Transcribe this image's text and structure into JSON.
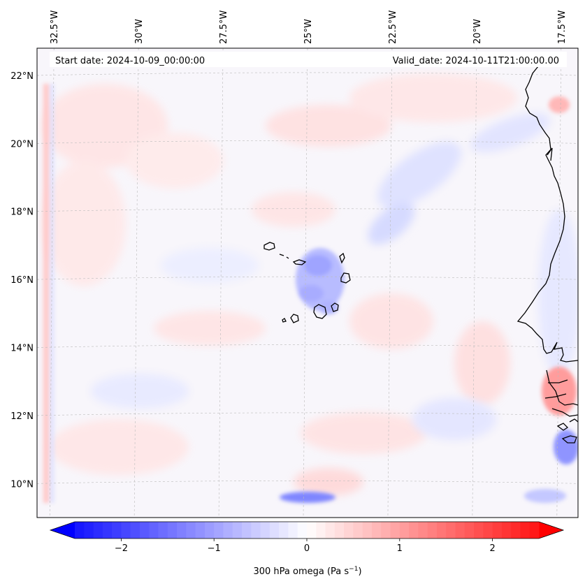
{
  "header": {
    "start_date": "Start date: 2024-10-09_00:00:00",
    "valid_date": "Valid_date: 2024-10-11T21:00:00.00"
  },
  "map": {
    "variable": "300 hPa omega",
    "lon_range": [
      -33.0,
      -17.0
    ],
    "lat_range": [
      9.0,
      22.8
    ],
    "lon_ticks": [
      {
        "value": -32.5,
        "label": "32.5°W"
      },
      {
        "value": -30.0,
        "label": "30°W"
      },
      {
        "value": -27.5,
        "label": "27.5°W"
      },
      {
        "value": -25.0,
        "label": "25°W"
      },
      {
        "value": -22.5,
        "label": "22.5°W"
      },
      {
        "value": -20.0,
        "label": "20°W"
      },
      {
        "value": -17.5,
        "label": "17.5°W"
      }
    ],
    "lat_ticks": [
      {
        "value": 22,
        "label": "22°N"
      },
      {
        "value": 20,
        "label": "20°N"
      },
      {
        "value": 18,
        "label": "18°N"
      },
      {
        "value": 16,
        "label": "16°N"
      },
      {
        "value": 14,
        "label": "14°N"
      },
      {
        "value": 12,
        "label": "12°N"
      },
      {
        "value": 10,
        "label": "10°N"
      }
    ],
    "features": [
      {
        "name": "Cape Verde Islands",
        "lon": -24.0,
        "lat": 16.0
      },
      {
        "name": "West African coastline",
        "lon": -17.0,
        "lat": 16.0
      }
    ]
  },
  "colorbar": {
    "label": "300 hPa omega (Pa s",
    "label_unit_sup": "−1",
    "label_close": ")",
    "vmin": -2.7,
    "vmax": 2.7,
    "ticks": [
      {
        "value": -2,
        "label": "−2"
      },
      {
        "value": -1,
        "label": "−1"
      },
      {
        "value": 0,
        "label": "0"
      },
      {
        "value": 1,
        "label": "1"
      },
      {
        "value": 2,
        "label": "2"
      }
    ],
    "colors": {
      "low": "#0000ff",
      "mid": "#ffffff",
      "high": "#ff0000"
    }
  }
}
